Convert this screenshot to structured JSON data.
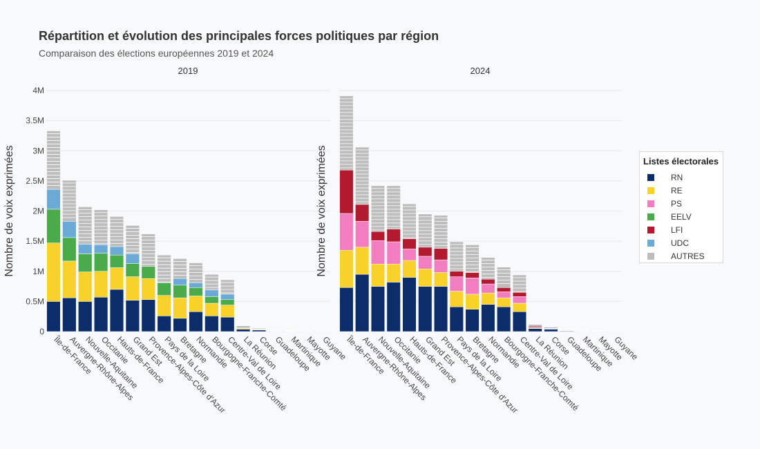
{
  "header": {
    "title": "Répartition et évolution des principales forces politiques par région",
    "subtitle": "Comparaison des élections européennes 2019 et 2024"
  },
  "legend": {
    "title": "Listes électorales",
    "items": [
      {
        "label": "RN",
        "color": "#0c2d69"
      },
      {
        "label": "RE",
        "color": "#f8d22b"
      },
      {
        "label": "PS",
        "color": "#f27ec0"
      },
      {
        "label": "EELV",
        "color": "#4aab4a"
      },
      {
        "label": "LFI",
        "color": "#b31a30"
      },
      {
        "label": "UDC",
        "color": "#6ba9d6"
      },
      {
        "label": "AUTRES",
        "color": "#bdbdbd"
      }
    ]
  },
  "chart_data": [
    {
      "type": "bar",
      "stacked": true,
      "title": "2019",
      "xlabel": "",
      "ylabel": "Nombre de voix exprimées",
      "ylim": [
        0,
        4000000
      ],
      "y_ticks": [
        "0",
        "0.5M",
        "1M",
        "1.5M",
        "2M",
        "2.5M",
        "3M",
        "3.5M",
        "4M"
      ],
      "categories": [
        "Île-de-France",
        "Auvergne-Rhône-Alpes",
        "Nouvelle-Aquitaine",
        "Occitanie",
        "Hauts-de-France",
        "Grand Est",
        "Provence-Alpes-Côte d'Azur",
        "Pays de la Loire",
        "Bretagne",
        "Normandie",
        "Bourgogne-Franche-Comté",
        "Centre-Val de Loire",
        "La Réunion",
        "Corse",
        "Guadeloupe",
        "Martinique",
        "Mayotte",
        "Guyane"
      ],
      "series": [
        {
          "name": "RN",
          "values": [
            500000,
            560000,
            500000,
            570000,
            700000,
            520000,
            530000,
            260000,
            220000,
            330000,
            260000,
            240000,
            40000,
            25000,
            6000,
            5000,
            3000,
            2500
          ]
        },
        {
          "name": "RE",
          "values": [
            970000,
            610000,
            490000,
            430000,
            360000,
            390000,
            350000,
            340000,
            340000,
            260000,
            210000,
            200000,
            15000,
            8000,
            3000,
            3000,
            1500,
            1000
          ]
        },
        {
          "name": "PS",
          "values": [
            0,
            0,
            0,
            0,
            0,
            0,
            0,
            0,
            0,
            0,
            0,
            0,
            0,
            0,
            0,
            0,
            0,
            0
          ]
        },
        {
          "name": "EELV",
          "values": [
            560000,
            390000,
            300000,
            300000,
            210000,
            220000,
            200000,
            210000,
            210000,
            140000,
            110000,
            90000,
            5000,
            7000,
            1000,
            1000,
            300,
            300
          ]
        },
        {
          "name": "LFI",
          "values": [
            0,
            0,
            0,
            0,
            0,
            0,
            0,
            0,
            0,
            0,
            0,
            0,
            0,
            0,
            0,
            0,
            0,
            0
          ]
        },
        {
          "name": "UDC",
          "values": [
            330000,
            270000,
            160000,
            140000,
            140000,
            160000,
            0,
            0,
            110000,
            80000,
            110000,
            90000,
            0,
            0,
            0,
            0,
            0,
            0
          ]
        },
        {
          "name": "AUTRES",
          "values": [
            970000,
            680000,
            620000,
            580000,
            500000,
            470000,
            540000,
            460000,
            330000,
            330000,
            260000,
            240000,
            35000,
            15000,
            5000,
            5000,
            2000,
            2000
          ]
        }
      ]
    },
    {
      "type": "bar",
      "stacked": true,
      "title": "2024",
      "xlabel": "",
      "ylabel": "Nombre de voix exprimées",
      "ylim": [
        0,
        4000000
      ],
      "y_ticks": [
        "0",
        "0.5M",
        "1M",
        "1.5M",
        "2M",
        "2.5M",
        "3M",
        "3.5M",
        "4M"
      ],
      "categories": [
        "Île-de-France",
        "Auvergne-Rhône-Alpes",
        "Nouvelle-Aquitaine",
        "Occitanie",
        "Hauts-de-France",
        "Grand Est",
        "Provence-Alpes-Côte d'Azur",
        "Pays de la Loire",
        "Bretagne",
        "Normandie",
        "Bourgogne-Franche-Comté",
        "Centre-Val de Loire",
        "La Réunion",
        "Corse",
        "Guadeloupe",
        "Martinique",
        "Mayotte",
        "Guyane"
      ],
      "series": [
        {
          "name": "RN",
          "values": [
            730000,
            950000,
            750000,
            820000,
            900000,
            750000,
            750000,
            410000,
            370000,
            450000,
            410000,
            330000,
            50000,
            40000,
            10000,
            6000,
            4000,
            3000
          ]
        },
        {
          "name": "RE",
          "values": [
            620000,
            450000,
            370000,
            300000,
            280000,
            290000,
            230000,
            260000,
            250000,
            190000,
            150000,
            140000,
            10000,
            5000,
            2000,
            2000,
            1000,
            1000
          ]
        },
        {
          "name": "PS",
          "values": [
            610000,
            430000,
            390000,
            370000,
            190000,
            210000,
            210000,
            240000,
            270000,
            150000,
            100000,
            110000,
            8000,
            5000,
            2000,
            1000,
            500,
            500
          ]
        },
        {
          "name": "EELV",
          "values": [
            0,
            0,
            0,
            0,
            0,
            0,
            0,
            0,
            0,
            0,
            0,
            0,
            0,
            0,
            0,
            0,
            0,
            0
          ]
        },
        {
          "name": "LFI",
          "values": [
            720000,
            280000,
            150000,
            210000,
            170000,
            150000,
            190000,
            90000,
            90000,
            80000,
            70000,
            70000,
            20000,
            3000,
            2000,
            2000,
            1000,
            1000
          ]
        },
        {
          "name": "UDC",
          "values": [
            0,
            0,
            0,
            0,
            0,
            0,
            0,
            0,
            0,
            0,
            0,
            0,
            0,
            0,
            0,
            0,
            0,
            0
          ]
        },
        {
          "name": "AUTRES",
          "values": [
            1230000,
            950000,
            760000,
            720000,
            580000,
            550000,
            550000,
            490000,
            460000,
            360000,
            340000,
            290000,
            30000,
            20000,
            4000,
            4000,
            2000,
            1500
          ]
        }
      ]
    }
  ]
}
